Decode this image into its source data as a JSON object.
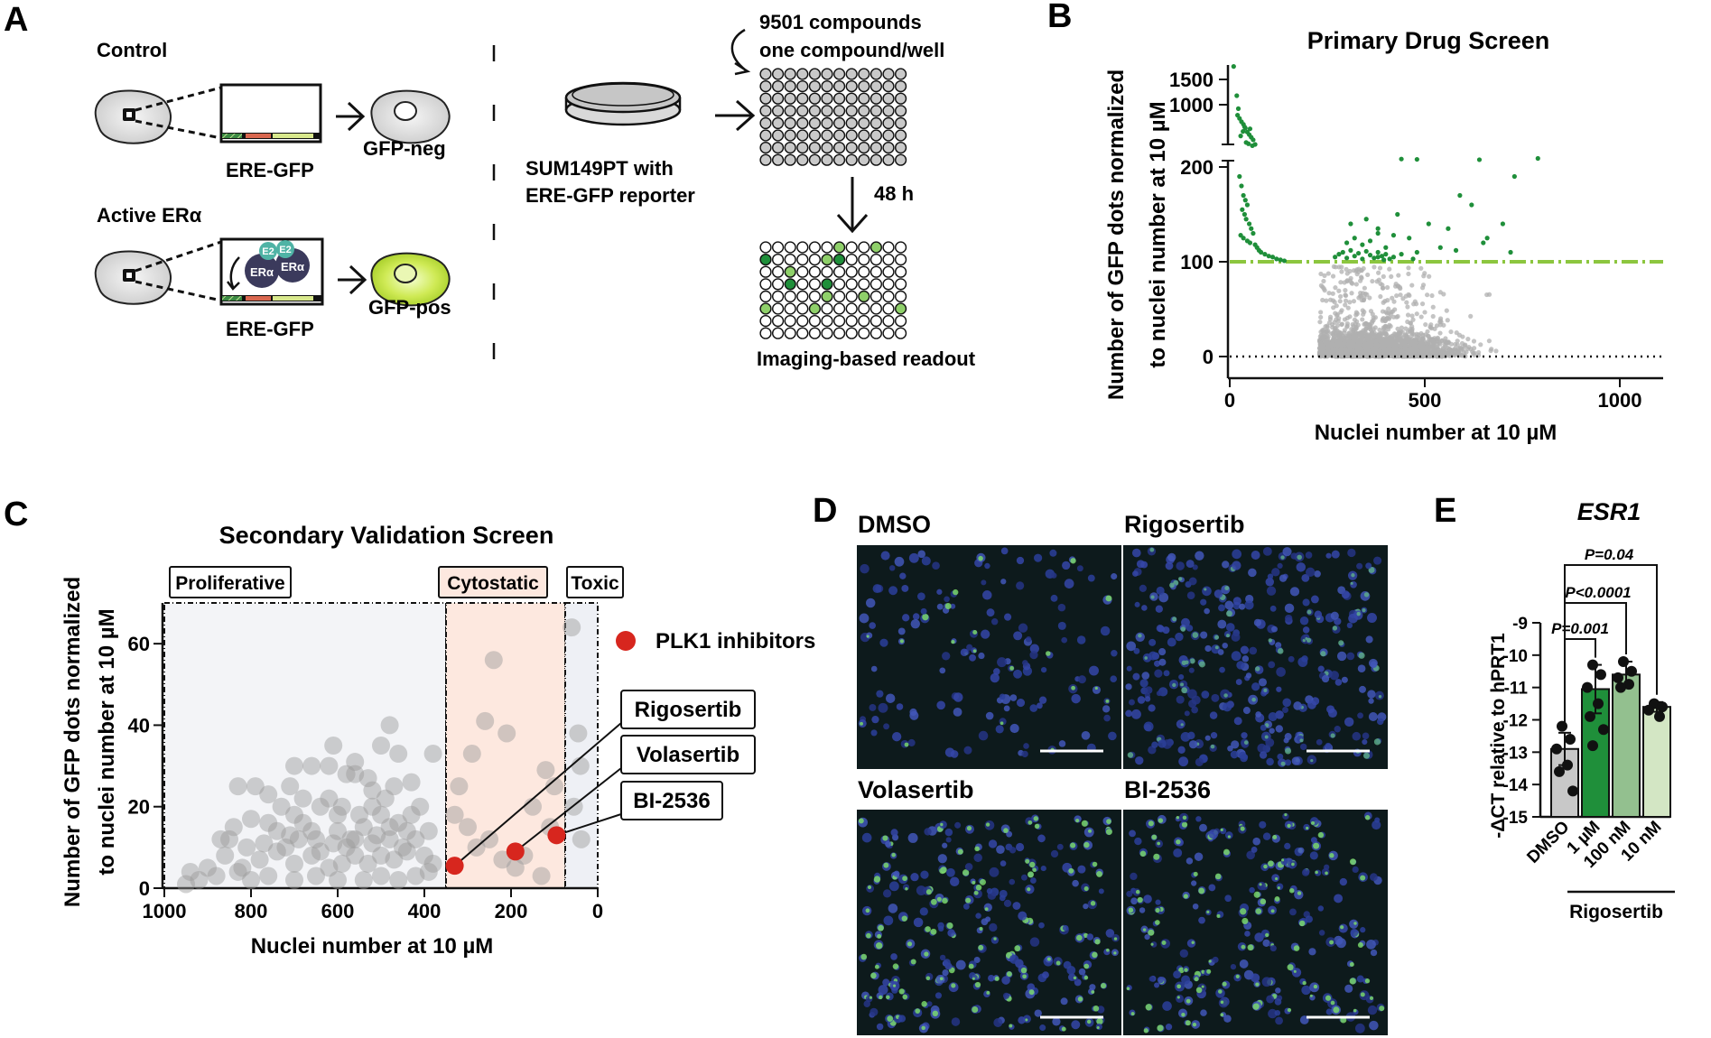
{
  "panels": {
    "a": {
      "letter": "A",
      "control_label": "Control",
      "active_label": "Active ERα",
      "reporter_label_1": "ERE-GFP",
      "reporter_label_2": "ERE-GFP",
      "gfp_neg": "GFP-neg",
      "gfp_pos": "GFP-pos",
      "e2_1": "E2",
      "e2_2": "E2",
      "era_1": "ERα",
      "era_2": "ERα",
      "cell_line_1": "SUM149PT with",
      "cell_line_2": "ERE-GFP reporter",
      "compounds_1": "9501 compounds",
      "compounds_2": "one compound/well",
      "time": "48 h",
      "readout": "Imaging-based readout"
    },
    "b": {
      "letter": "B"
    },
    "c": {
      "letter": "C"
    },
    "d": {
      "letter": "D",
      "images": [
        "DMSO",
        "Rigosertib",
        "Volasertib",
        "BI-2536"
      ]
    },
    "e": {
      "letter": "E"
    }
  },
  "colors": {
    "hit_green": "#1f8f3a",
    "threshold_green": "#8cc63f",
    "inactive_gray": "#b0b0b0",
    "plk1_red": "#d7261e",
    "cytostatic_fill": "#fde8df",
    "proliferative_fill": "#f3f4f7",
    "toxic_fill": "#eef0f5",
    "bar_dmso": "#c8c8c8",
    "bar_1um": "#1f8f3a",
    "bar_100nm": "#93c08f",
    "bar_10nm": "#d3e6c4",
    "micro_bg": "#0d1a1c"
  },
  "chart_data": [
    {
      "type": "scatter",
      "title": "Primary Drug Screen",
      "xlabel": "Nuclei number at 10 µM",
      "ylabel_1": "Number of GFP dots normalized",
      "ylabel_2": "to nuclei number at 10 µM",
      "x_ticks": [
        "0",
        "500",
        "1000"
      ],
      "y_ticks": [
        "0",
        "100",
        "200",
        "1000",
        "1500"
      ],
      "xlim": [
        0,
        1100
      ],
      "ylim": [
        -20,
        1800
      ],
      "y_scale": "segmented (0-200 linear, break, 200-1800 compressed)",
      "threshold": 100,
      "grid": false,
      "series": [
        {
          "name": "",
          "role": "hits (above threshold)",
          "points": [
            [
              10,
              1650
            ],
            [
              18,
              1200
            ],
            [
              22,
              1000
            ],
            [
              25,
              850
            ],
            [
              30,
              800
            ],
            [
              35,
              760
            ],
            [
              40,
              700
            ],
            [
              45,
              640
            ],
            [
              50,
              600
            ],
            [
              55,
              560
            ],
            [
              60,
              520
            ],
            [
              28,
              580
            ],
            [
              34,
              650
            ],
            [
              42,
              480
            ],
            [
              48,
              460
            ],
            [
              65,
              450
            ],
            [
              20,
              900
            ],
            [
              38,
              720
            ],
            [
              52,
              690
            ],
            [
              58,
              430
            ],
            [
              25,
              190
            ],
            [
              30,
              180
            ],
            [
              35,
              170
            ],
            [
              40,
              165
            ],
            [
              45,
              160
            ],
            [
              32,
              155
            ],
            [
              38,
              150
            ],
            [
              42,
              145
            ],
            [
              50,
              140
            ],
            [
              55,
              135
            ],
            [
              60,
              130
            ],
            [
              28,
              128
            ],
            [
              35,
              125
            ],
            [
              45,
              122
            ],
            [
              52,
              120
            ],
            [
              65,
              118
            ],
            [
              70,
              115
            ],
            [
              75,
              112
            ],
            [
              80,
              110
            ],
            [
              90,
              108
            ],
            [
              100,
              106
            ],
            [
              110,
              105
            ],
            [
              120,
              103
            ],
            [
              130,
              102
            ],
            [
              140,
              101
            ],
            [
              270,
              105
            ],
            [
              280,
              108
            ],
            [
              290,
              110
            ],
            [
              300,
              104
            ],
            [
              310,
              112
            ],
            [
              320,
              106
            ],
            [
              330,
              109
            ],
            [
              340,
              103
            ],
            [
              350,
              111
            ],
            [
              360,
              107
            ],
            [
              370,
              104
            ],
            [
              380,
              110
            ],
            [
              390,
              106
            ],
            [
              400,
              108
            ],
            [
              410,
              103
            ],
            [
              420,
              105
            ],
            [
              300,
              120
            ],
            [
              320,
              125
            ],
            [
              340,
              118
            ],
            [
              360,
              122
            ],
            [
              380,
              130
            ],
            [
              400,
              115
            ],
            [
              310,
              140
            ],
            [
              350,
              145
            ],
            [
              380,
              135
            ],
            [
              420,
              128
            ],
            [
              430,
              150
            ],
            [
              460,
              125
            ],
            [
              480,
              110
            ],
            [
              440,
              108
            ],
            [
              470,
              103
            ],
            [
              380,
              105
            ],
            [
              395,
              102
            ],
            [
              440,
              225
            ],
            [
              480,
              220
            ],
            [
              640,
              215
            ],
            [
              790,
              235
            ],
            [
              700,
              140
            ],
            [
              730,
              190
            ],
            [
              620,
              160
            ],
            [
              560,
              135
            ],
            [
              590,
              170
            ],
            [
              660,
              125
            ],
            [
              720,
              110
            ],
            [
              650,
              120
            ],
            [
              540,
              115
            ],
            [
              510,
              140
            ],
            [
              580,
              112
            ]
          ]
        },
        {
          "name": "",
          "role": "inactive (below threshold)",
          "generated": true
        }
      ]
    },
    {
      "type": "scatter",
      "title": "Secondary Validation Screen",
      "xlabel": "Nuclei number at 10 µM",
      "ylabel_1": "Number of GFP dots normalized",
      "ylabel_2": "to nuclei number at 10 µM",
      "x_ticks": [
        "1000",
        "800",
        "600",
        "400",
        "200",
        "0"
      ],
      "y_ticks": [
        "0",
        "20",
        "40",
        "60"
      ],
      "xlim": [
        1000,
        0
      ],
      "ylim": [
        0,
        70
      ],
      "legend_placement": "right",
      "zones": [
        {
          "label": "Proliferative",
          "from": 1000,
          "to": 350
        },
        {
          "label": "Cytostatic",
          "from": 350,
          "to": 75
        },
        {
          "label": "Toxic",
          "from": 75,
          "to": 0
        }
      ],
      "series": [
        {
          "name": "",
          "points": [
            [
              830,
              25
            ],
            [
              790,
              25
            ],
            [
              760,
              23
            ],
            [
              710,
              25
            ],
            [
              660,
              30
            ],
            [
              610,
              35
            ],
            [
              480,
              40
            ],
            [
              500,
              35
            ],
            [
              460,
              33
            ],
            [
              560,
              28
            ],
            [
              530,
              27
            ],
            [
              590,
              20
            ],
            [
              620,
              22
            ],
            [
              700,
              18
            ],
            [
              740,
              14
            ],
            [
              680,
              16
            ],
            [
              650,
              12
            ],
            [
              600,
              14
            ],
            [
              570,
              12
            ],
            [
              540,
              15
            ],
            [
              510,
              13
            ],
            [
              480,
              12
            ],
            [
              450,
              10
            ],
            [
              420,
              12
            ],
            [
              390,
              14
            ],
            [
              440,
              9
            ],
            [
              470,
              7
            ],
            [
              500,
              8
            ],
            [
              530,
              6
            ],
            [
              560,
              8
            ],
            [
              590,
              6
            ],
            [
              620,
              5
            ],
            [
              660,
              8
            ],
            [
              700,
              6
            ],
            [
              740,
              9
            ],
            [
              780,
              7
            ],
            [
              820,
              5
            ],
            [
              860,
              8
            ],
            [
              880,
              3
            ],
            [
              900,
              5
            ],
            [
              920,
              2
            ],
            [
              950,
              1
            ],
            [
              940,
              4
            ],
            [
              850,
              12
            ],
            [
              810,
              10
            ],
            [
              770,
              11
            ],
            [
              720,
              10
            ],
            [
              690,
              12
            ],
            [
              640,
              9
            ],
            [
              580,
              10
            ],
            [
              550,
              18
            ],
            [
              520,
              20
            ],
            [
              490,
              22
            ],
            [
              460,
              16
            ],
            [
              430,
              18
            ],
            [
              410,
              20
            ],
            [
              390,
              4
            ],
            [
              420,
              3
            ],
            [
              460,
              2
            ],
            [
              500,
              3
            ],
            [
              540,
              2
            ],
            [
              600,
              2
            ],
            [
              650,
              3
            ],
            [
              700,
              2
            ],
            [
              760,
              3
            ],
            [
              800,
              2
            ],
            [
              830,
              4
            ],
            [
              620,
              30
            ],
            [
              580,
              28
            ],
            [
              560,
              31
            ],
            [
              520,
              24
            ],
            [
              700,
              30
            ],
            [
              640,
              20
            ],
            [
              680,
              22
            ],
            [
              730,
              20
            ],
            [
              600,
              18
            ],
            [
              500,
              18
            ],
            [
              470,
              25
            ],
            [
              430,
              26
            ],
            [
              400,
              8
            ],
            [
              380,
              6
            ],
            [
              440,
              14
            ],
            [
              480,
              15
            ],
            [
              520,
              11
            ],
            [
              560,
              12
            ],
            [
              610,
              11
            ],
            [
              660,
              14
            ],
            [
              710,
              13
            ],
            [
              760,
              16
            ],
            [
              800,
              17
            ],
            [
              840,
              15
            ],
            [
              870,
              12
            ],
            [
              380,
              33
            ],
            [
              290,
              33
            ],
            [
              240,
              56
            ],
            [
              260,
              41
            ],
            [
              210,
              38
            ],
            [
              320,
              25
            ],
            [
              330,
              18
            ],
            [
              300,
              15
            ],
            [
              280,
              10
            ],
            [
              250,
              12
            ],
            [
              220,
              7
            ],
            [
              190,
              5
            ],
            [
              120,
              29
            ],
            [
              100,
              25
            ],
            [
              130,
              3
            ],
            [
              170,
              8
            ],
            [
              110,
              15
            ],
            [
              150,
              20
            ],
            [
              60,
              64
            ],
            [
              45,
              38
            ],
            [
              40,
              30
            ],
            [
              55,
              20
            ],
            [
              38,
              12
            ]
          ]
        },
        {
          "name": "PLK1 inhibitors",
          "points": [
            [
              330,
              5.5
            ],
            [
              190,
              9
            ],
            [
              95,
              13
            ]
          ],
          "labels": [
            "Rigosertib",
            "Volasertib",
            "BI-2536"
          ]
        }
      ]
    },
    {
      "type": "bar",
      "title": "ESR1",
      "ylabel": "-ΔCT relative to hPRT1",
      "categories": [
        "DMSO",
        "1 µM",
        "100 nM",
        "10 nM"
      ],
      "group_label": "Rigosertib",
      "values": [
        -12.9,
        -11.05,
        -10.6,
        -11.6
      ],
      "errors": [
        0.5,
        0.75,
        0.4,
        0.15
      ],
      "y_ticks": [
        "-15",
        "-14",
        "-13",
        "-12",
        "-11",
        "-10",
        "-9"
      ],
      "ylim": [
        -15,
        -9
      ],
      "points": [
        [
          -12.2,
          -12.6,
          -12.9,
          -13.4,
          -13.6,
          -14.2
        ],
        [
          -10.3,
          -10.6,
          -11,
          -11.5,
          -11.9,
          -12.3,
          -12.8
        ],
        [
          -10.2,
          -10.5,
          -10.7,
          -10.9,
          -11.0
        ],
        [
          -11.5,
          -11.6,
          -11.7,
          -11.9
        ]
      ],
      "comparisons": [
        {
          "label": "P=0.001",
          "from": 0,
          "to": 1
        },
        {
          "label": "P<0.0001",
          "from": 0,
          "to": 2
        },
        {
          "label": "P=0.04",
          "from": 0,
          "to": 3
        }
      ]
    }
  ]
}
